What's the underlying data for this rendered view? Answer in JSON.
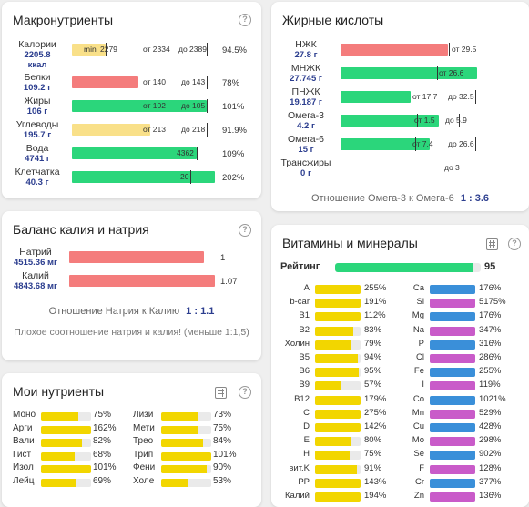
{
  "macro": {
    "title": "Макронутриенты",
    "rows": [
      {
        "label": "Калории",
        "value": "2205.8 ккал",
        "pct": "94.5%",
        "t1": "min",
        "t1b": "2279",
        "t2": "от 2334",
        "t3": "до 2389",
        "fill": 0.945
      },
      {
        "label": "Белки",
        "value": "109.2 г",
        "pct": "78%",
        "t2": "от 140",
        "t3": "до 143",
        "fill": 0.78
      },
      {
        "label": "Жиры",
        "value": "106 г",
        "pct": "101%",
        "t2": "от 102",
        "t3": "до 105",
        "fill": 1.01
      },
      {
        "label": "Углеводы",
        "value": "195.7 г",
        "pct": "91.9%",
        "t2": "от 213",
        "t3": "до 218",
        "fill": 0.919
      },
      {
        "label": "Вода",
        "value": "4741 г",
        "pct": "109%",
        "t2": "4362",
        "fill": 1.09
      },
      {
        "label": "Клетчатка",
        "value": "40.3 г",
        "pct": "202%",
        "t2": "20",
        "fill": 2.02
      }
    ]
  },
  "fatty": {
    "title": "Жирные кислоты",
    "rows": [
      {
        "label": "НЖК",
        "value": "27.8 г",
        "t2": "от 29.5"
      },
      {
        "label": "МНЖК",
        "value": "27.745 г",
        "t2": "от 26.6"
      },
      {
        "label": "ПНЖК",
        "value": "19.187 г",
        "t2": "от 17.7",
        "t3": "до 32.5"
      },
      {
        "label": "Омега-3",
        "value": "4.2 г",
        "t2": "от 1.5",
        "t3": "до 5.9"
      },
      {
        "label": "Омега-6",
        "value": "15 г",
        "t2": "от 7.4",
        "t3": "до 26.6"
      },
      {
        "label": "Трансжиры",
        "value": "0 г",
        "t3": "до 3"
      }
    ],
    "ratio_label": "Отношение Омега-3 к Омега-6",
    "ratio_value": "1 : 3.6"
  },
  "balance": {
    "title": "Баланс калия и натрия",
    "rows": [
      {
        "label": "Натрий",
        "value": "4515.36 мг",
        "mark": "1"
      },
      {
        "label": "Калий",
        "value": "4843.68 мг",
        "mark": "1.07"
      }
    ],
    "ratio_label": "Отношение Натрия к Калию",
    "ratio_value": "1 : 1.1",
    "warning": "Плохое соотношение натрия и калия! (меньше 1:1,5)"
  },
  "my": {
    "title": "Мои нутриенты",
    "left": [
      {
        "label": "Моно",
        "pct": "75%",
        "fill": 0.75
      },
      {
        "label": "Арги",
        "pct": "162%",
        "fill": 1.0
      },
      {
        "label": "Вали",
        "pct": "82%",
        "fill": 0.82
      },
      {
        "label": "Гист",
        "pct": "68%",
        "fill": 0.68
      },
      {
        "label": "Изол",
        "pct": "101%",
        "fill": 1.0
      },
      {
        "label": "Лейц",
        "pct": "69%",
        "fill": 0.69
      }
    ],
    "right": [
      {
        "label": "Лизи",
        "pct": "73%",
        "fill": 0.73
      },
      {
        "label": "Мети",
        "pct": "75%",
        "fill": 0.75
      },
      {
        "label": "Трео",
        "pct": "84%",
        "fill": 0.84
      },
      {
        "label": "Трип",
        "pct": "101%",
        "fill": 1.0
      },
      {
        "label": "Фени",
        "pct": "90%",
        "fill": 0.9
      },
      {
        "label": "Холе",
        "pct": "53%",
        "fill": 0.53
      }
    ]
  },
  "vitamins": {
    "title": "Витамины и минералы",
    "rating_label": "Рейтинг",
    "rating_value": "95",
    "left": [
      {
        "label": "A",
        "pct": "255%",
        "fill": 1.0
      },
      {
        "label": "b-car",
        "pct": "191%",
        "fill": 1.0
      },
      {
        "label": "B1",
        "pct": "112%",
        "fill": 1.0
      },
      {
        "label": "B2",
        "pct": "83%",
        "fill": 0.83
      },
      {
        "label": "Холин",
        "pct": "79%",
        "fill": 0.79
      },
      {
        "label": "B5",
        "pct": "94%",
        "fill": 0.94
      },
      {
        "label": "B6",
        "pct": "95%",
        "fill": 0.95
      },
      {
        "label": "B9",
        "pct": "57%",
        "fill": 0.57
      },
      {
        "label": "B12",
        "pct": "179%",
        "fill": 1.0
      },
      {
        "label": "C",
        "pct": "275%",
        "fill": 1.0
      },
      {
        "label": "D",
        "pct": "142%",
        "fill": 1.0
      },
      {
        "label": "E",
        "pct": "80%",
        "fill": 0.8
      },
      {
        "label": "H",
        "pct": "75%",
        "fill": 0.75
      },
      {
        "label": "вит.K",
        "pct": "91%",
        "fill": 0.91
      },
      {
        "label": "PP",
        "pct": "143%",
        "fill": 1.0
      },
      {
        "label": "Калий",
        "pct": "194%",
        "fill": 1.0
      }
    ],
    "right": [
      {
        "label": "Ca",
        "pct": "176%",
        "fill": 1.0
      },
      {
        "label": "Si",
        "pct": "5175%",
        "fill": 1.0
      },
      {
        "label": "Mg",
        "pct": "176%",
        "fill": 1.0
      },
      {
        "label": "Na",
        "pct": "347%",
        "fill": 1.0
      },
      {
        "label": "P",
        "pct": "316%",
        "fill": 1.0
      },
      {
        "label": "Cl",
        "pct": "286%",
        "fill": 1.0
      },
      {
        "label": "Fe",
        "pct": "255%",
        "fill": 1.0
      },
      {
        "label": "I",
        "pct": "119%",
        "fill": 1.0
      },
      {
        "label": "Co",
        "pct": "1021%",
        "fill": 1.0
      },
      {
        "label": "Mn",
        "pct": "529%",
        "fill": 1.0
      },
      {
        "label": "Cu",
        "pct": "428%",
        "fill": 1.0
      },
      {
        "label": "Mo",
        "pct": "298%",
        "fill": 1.0
      },
      {
        "label": "Se",
        "pct": "902%",
        "fill": 1.0
      },
      {
        "label": "F",
        "pct": "128%",
        "fill": 1.0
      },
      {
        "label": "Cr",
        "pct": "377%",
        "fill": 1.0
      },
      {
        "label": "Zn",
        "pct": "136%",
        "fill": 1.0
      }
    ]
  },
  "colors": {
    "green": "#2bd67b",
    "red": "#f47c7c",
    "yellow": "#f9e089",
    "vit_yellow": "#f2d600",
    "blue": "#3a8fd9",
    "purple": "#c95bc9"
  }
}
